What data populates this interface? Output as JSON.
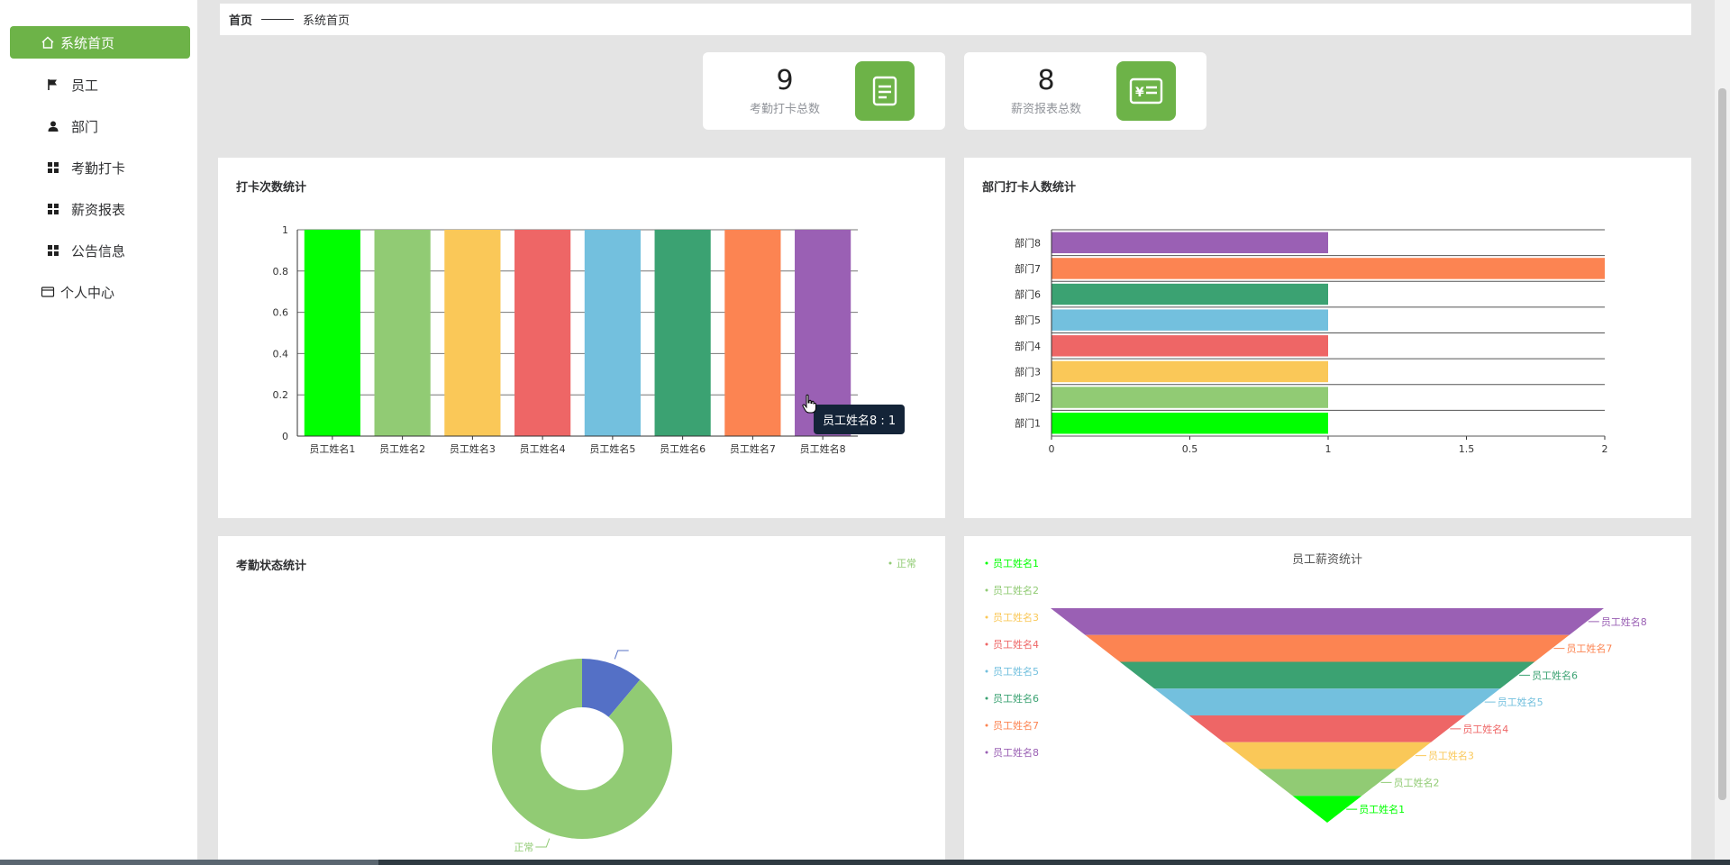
{
  "sidebar": {
    "items": [
      {
        "label": "系统首页",
        "icon": "home-icon"
      },
      {
        "label": "员工",
        "icon": "flag-icon"
      },
      {
        "label": "部门",
        "icon": "user-icon"
      },
      {
        "label": "考勤打卡",
        "icon": "grid-icon"
      },
      {
        "label": "薪资报表",
        "icon": "grid-icon"
      },
      {
        "label": "公告信息",
        "icon": "grid-icon"
      },
      {
        "label": "个人中心",
        "icon": "card-icon"
      }
    ]
  },
  "breadcrumb": {
    "home": "首页",
    "current": "系统首页"
  },
  "stats": [
    {
      "value": "9",
      "label": "考勤打卡总数",
      "icon": "document-icon"
    },
    {
      "value": "8",
      "label": "薪资报表总数",
      "icon": "yuan-card-icon"
    }
  ],
  "colors": {
    "accent": "#6db348",
    "palette": [
      "#00ff00",
      "#91cb74",
      "#fac858",
      "#ee6666",
      "#73c0de",
      "#3ba272",
      "#fc8452",
      "#9a60b4"
    ],
    "pie_blue": "#5470c6"
  },
  "tooltip": {
    "text": "员工姓名8 : 1"
  },
  "chart_data": [
    {
      "type": "bar",
      "title": "打卡次数统计",
      "categories": [
        "员工姓名1",
        "员工姓名2",
        "员工姓名3",
        "员工姓名4",
        "员工姓名5",
        "员工姓名6",
        "员工姓名7",
        "员工姓名8"
      ],
      "values": [
        1,
        1,
        1,
        1,
        1,
        1,
        1,
        1
      ],
      "ylim": [
        0,
        1
      ],
      "yticks": [
        "0",
        "0.2",
        "0.4",
        "0.6",
        "0.8",
        "1"
      ]
    },
    {
      "type": "bar",
      "orientation": "horizontal",
      "title": "部门打卡人数统计",
      "categories": [
        "部门1",
        "部门2",
        "部门3",
        "部门4",
        "部门5",
        "部门6",
        "部门7",
        "部门8"
      ],
      "values": [
        1,
        1,
        1,
        1,
        1,
        1,
        2,
        1
      ],
      "xlim": [
        0,
        2
      ],
      "xticks": [
        "0",
        "0.5",
        "1",
        "1.5",
        "2"
      ]
    },
    {
      "type": "pie",
      "title": "考勤状态统计",
      "legend": [
        "正常"
      ],
      "slices": [
        {
          "name": "正常",
          "value": 8
        },
        {
          "name": "",
          "value": 1
        }
      ]
    },
    {
      "type": "funnel",
      "title": "员工薪资统计",
      "legend": [
        "员工姓名1",
        "员工姓名2",
        "员工姓名3",
        "员工姓名4",
        "员工姓名5",
        "员工姓名6",
        "员工姓名7",
        "员工姓名8"
      ],
      "order_bottom_to_top": [
        "员工姓名1",
        "员工姓名2",
        "员工姓名3",
        "员工姓名4",
        "员工姓名5",
        "员工姓名6",
        "员工姓名7",
        "员工姓名8"
      ]
    }
  ]
}
